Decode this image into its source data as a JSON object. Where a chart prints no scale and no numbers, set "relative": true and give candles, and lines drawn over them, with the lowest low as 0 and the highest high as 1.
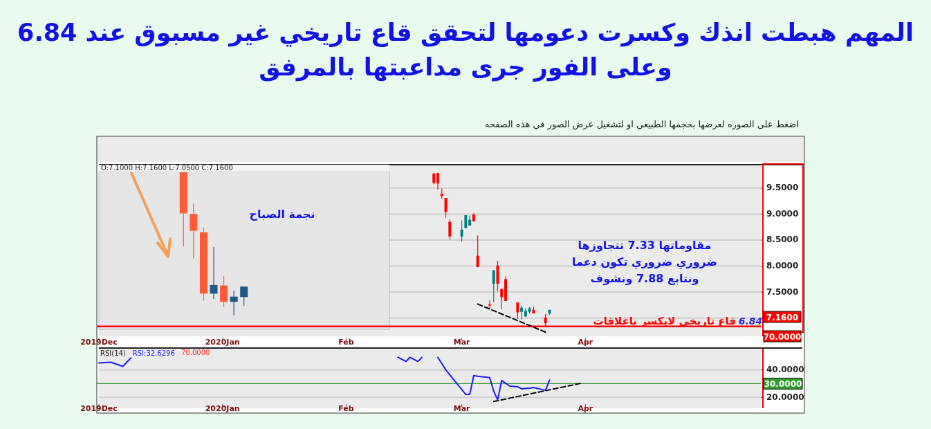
{
  "chart_data": [
    {
      "type": "candlestick",
      "title": "المهم هبطت انذك وكسرت دعومها لتحقق قاع تاريخي غير مسبوق عند 6.84 وعلى الفور جرى مداعبتها بالمرفق",
      "subtitle": "اضغط على الصوره لعرضها بحجمها الطبيعي او لتشغيل عرض الصور في هذه الصفحه",
      "x": [
        "2020-02-23",
        "2020-02-24",
        "2020-02-25",
        "2020-02-26",
        "2020-02-27",
        "2020-03-01",
        "2020-03-02",
        "2020-03-03",
        "2020-03-04",
        "2020-03-05",
        "2020-03-08",
        "2020-03-09",
        "2020-03-10",
        "2020-03-11",
        "2020-03-12",
        "2020-03-15",
        "2020-03-16",
        "2020-03-17",
        "2020-03-18",
        "2020-03-19",
        "2020-03-22",
        "2020-03-23"
      ],
      "ohlc": [
        [
          9.78,
          9.79,
          9.57,
          9.6
        ],
        [
          9.79,
          9.79,
          9.47,
          9.59
        ],
        [
          9.39,
          9.49,
          9.29,
          9.35
        ],
        [
          9.31,
          9.31,
          8.93,
          9.04
        ],
        [
          8.85,
          8.9,
          8.51,
          8.57
        ],
        [
          8.57,
          8.88,
          8.47,
          8.7
        ],
        [
          8.73,
          8.98,
          8.73,
          8.98
        ],
        [
          8.78,
          8.97,
          8.78,
          8.89
        ],
        [
          8.99,
          9.02,
          8.86,
          8.86
        ],
        [
          8.2,
          8.59,
          7.98,
          7.98
        ],
        [
          7.26,
          7.34,
          7.19,
          7.25
        ],
        [
          7.66,
          7.92,
          7.31,
          7.92
        ],
        [
          8.01,
          8.1,
          7.52,
          7.66
        ],
        [
          7.56,
          7.56,
          7.17,
          7.4
        ],
        [
          7.75,
          7.8,
          7.33,
          7.33
        ],
        [
          7.3,
          7.3,
          6.99,
          7.11
        ],
        [
          7.12,
          7.24,
          6.97,
          7.2
        ],
        [
          7.03,
          7.19,
          7.03,
          7.14
        ],
        [
          7.12,
          7.22,
          7.09,
          7.19
        ],
        [
          7.16,
          7.22,
          7.09,
          7.09
        ],
        [
          7.01,
          7.08,
          6.84,
          6.9
        ],
        [
          7.09,
          7.16,
          7.06,
          7.16
        ]
      ],
      "colors": [
        "#ff0000",
        "#ff0000",
        "#ff0000",
        "#ff0000",
        "#ff0000",
        "#008080",
        "#008080",
        "#008080",
        "#ff0000",
        "#ff0000",
        "#ff0000",
        "#008080",
        "#ff0000",
        "#ff0000",
        "#ff0000",
        "#ff0000",
        "#008080",
        "#008080",
        "#008080",
        "#ff0000",
        "#ff0000",
        "#008080"
      ],
      "series": [
        {
          "type": "line",
          "x": [
            "2020-03-05",
            "2020-03-22"
          ],
          "values": [
            7.27,
            6.73
          ],
          "color": "#000000",
          "line_style": "dashed"
        }
      ],
      "xlim": [
        "2019-12-01",
        "2020-05-15"
      ],
      "xticks": [
        {
          "value": "2019-12-01",
          "label": "2019Dec"
        },
        {
          "value": "2020-01-01",
          "label": "2020Jan"
        },
        {
          "value": "2020-02-01",
          "label": "Feb"
        },
        {
          "value": "2020-03-01",
          "label": "Mar"
        },
        {
          "value": "2020-04-01",
          "label": "Apr"
        }
      ],
      "ylim": [
        6.65,
        9.95
      ],
      "yticks": [
        {
          "value": 7,
          "label": null
        },
        {
          "value": 7.5,
          "label": "7.5000"
        },
        {
          "value": 8,
          "label": "8.0000"
        },
        {
          "value": 8.5,
          "label": "8.5000"
        },
        {
          "value": 9,
          "label": "9.0000"
        },
        {
          "value": 9.5,
          "label": "9.5000"
        }
      ],
      "grid": "y",
      "ref_lines": [
        {
          "axis": "y",
          "value": 6.84,
          "label": "6.84",
          "color": "#ff0000"
        }
      ],
      "annotations": [
        "مقاوماتها 7.33 تتجاوزها",
        "ضروري ضروري تكون دعما",
        "ونتابع 7.88 ونشوف",
        {
          "text": "قاع تاريخي لايكسر باغلاقات",
          "y": 6.84
        },
        "7.1600",
        "70.0000"
      ]
    },
    {
      "type": "candlestick",
      "relative": true,
      "categories": [
        null,
        null,
        null,
        null,
        null,
        null,
        null
      ],
      "ohlc": [
        [
          1.0,
          1.0,
          0.484,
          0.713
        ],
        [
          0.71,
          0.782,
          0.398,
          0.592
        ],
        [
          0.581,
          0.616,
          0.103,
          0.153
        ],
        [
          0.153,
          0.479,
          0.116,
          0.213
        ],
        [
          0.21,
          0.277,
          0.06,
          0.095
        ],
        [
          0.095,
          0.173,
          0.0,
          0.132
        ],
        [
          0.129,
          0.202,
          0.068,
          0.202
        ]
      ],
      "colors": [
        "#ff5a36",
        "#ff5a36",
        "#ff5a36",
        "#1f5a8a",
        "#ff5a36",
        "#1f5a8a",
        "#1f5a8a"
      ],
      "annotations": [
        "O:7.1000 H:7.1600 L:7.0500 C:7.1600",
        "نجمة الصباح"
      ]
    },
    {
      "type": "line",
      "title": "RSI(14)",
      "series": [
        {
          "color": "#1a1aff",
          "x": [
            "2019-12-01",
            "2019-12-04",
            "2019-12-07",
            "2019-12-09"
          ],
          "values": [
            45.1,
            45.6,
            42.6,
            48.7
          ]
        },
        {
          "color": "#1a1aff",
          "x": [
            "2020-02-14",
            "2020-02-16",
            "2020-02-17",
            "2020-02-19",
            "2020-02-20"
          ],
          "values": [
            49.2,
            46.2,
            49.2,
            46.2,
            49.2
          ]
        },
        {
          "name": "RSI:32.6296",
          "color": "#1a1aff",
          "x": [
            "2020-02-24",
            "2020-02-26",
            "2020-03-02",
            "2020-03-03",
            "2020-03-04",
            "2020-03-05",
            "2020-03-08",
            "2020-03-09",
            "2020-03-10",
            "2020-03-11",
            "2020-03-13",
            "2020-03-15",
            "2020-03-16",
            "2020-03-18",
            "2020-03-19",
            "2020-03-22",
            "2020-03-23"
          ],
          "values": [
            49.2,
            40.0,
            22.1,
            22.1,
            35.9,
            35.4,
            34.4,
            24.6,
            18.0,
            32.3,
            28.2,
            27.7,
            26.2,
            26.7,
            27.2,
            25.1,
            32.6
          ]
        },
        {
          "type": "line",
          "x": [
            "2020-03-09",
            "2020-03-31"
          ],
          "values": [
            16.9,
            30.3
          ],
          "color": "#000000",
          "line_style": "dashed"
        }
      ],
      "xlim": [
        "2019-12-01",
        "2020-05-15"
      ],
      "xticks": [
        {
          "value": "2019-12-01",
          "label": "2019Dec"
        },
        {
          "value": "2020-01-01",
          "label": "2020Jan"
        },
        {
          "value": "2020-02-01",
          "label": "Feb"
        },
        {
          "value": "2020-03-01",
          "label": "Mar"
        },
        {
          "value": "2020-04-01",
          "label": "Apr"
        }
      ],
      "ylim": [
        12,
        56
      ],
      "yticks": [
        {
          "value": 20,
          "label": "20.0000"
        },
        {
          "value": 40,
          "label": "40.0000"
        }
      ],
      "grid": "y",
      "ref_lines": [
        {
          "axis": "y",
          "value": 30,
          "label": "30.0000",
          "color": "#2e9a2e"
        }
      ],
      "annotations": [
        "70.0000"
      ]
    }
  ]
}
